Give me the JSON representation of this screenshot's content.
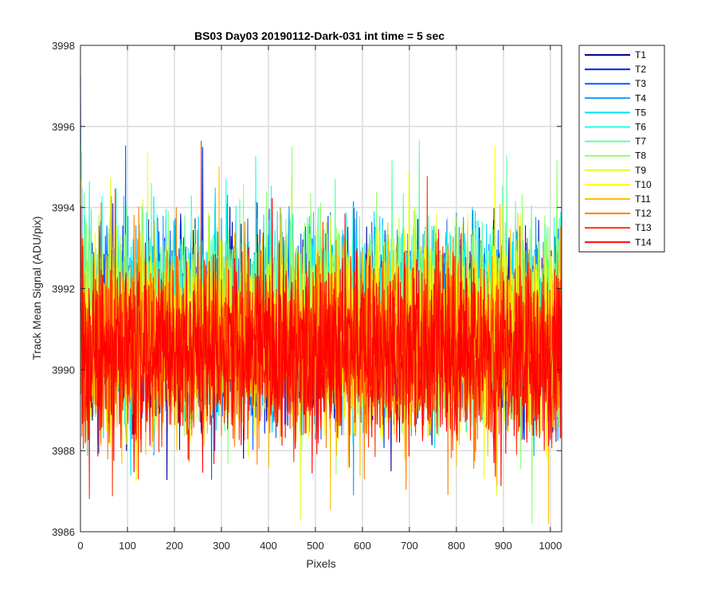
{
  "chart_data": {
    "type": "line",
    "title": "BS03 Day03 20190112-Dark-031 int time = 5 sec",
    "xlabel": "Pixels",
    "ylabel": "Track Mean Signal (ADU/pix)",
    "xlim": [
      0,
      1024
    ],
    "ylim": [
      3986,
      3998
    ],
    "xticks": [
      0,
      100,
      200,
      300,
      400,
      500,
      600,
      700,
      800,
      900,
      1000
    ],
    "yticks": [
      3986,
      3988,
      3990,
      3992,
      3994,
      3996,
      3998
    ],
    "grid": true,
    "legend_position": "outside-top-right",
    "noise_sd": 1.1,
    "series": [
      {
        "name": "T1",
        "color": "#00009f",
        "mean": 3991.0
      },
      {
        "name": "T2",
        "color": "#0020df",
        "mean": 3991.0
      },
      {
        "name": "T3",
        "color": "#0060ff",
        "mean": 3991.1
      },
      {
        "name": "T4",
        "color": "#009fff",
        "mean": 3991.3
      },
      {
        "name": "T5",
        "color": "#00dfff",
        "mean": 3991.4
      },
      {
        "name": "T6",
        "color": "#20ffdf",
        "mean": 3991.4
      },
      {
        "name": "T7",
        "color": "#60ffa0",
        "mean": 3991.3
      },
      {
        "name": "T8",
        "color": "#8fff70",
        "mean": 3991.1
      },
      {
        "name": "T9",
        "color": "#dfff20",
        "mean": 3991.0
      },
      {
        "name": "T10",
        "color": "#ffff00",
        "mean": 3990.8
      },
      {
        "name": "T11",
        "color": "#ffbf00",
        "mean": 3990.7
      },
      {
        "name": "T12",
        "color": "#ff8000",
        "mean": 3990.6
      },
      {
        "name": "T13",
        "color": "#ff3000",
        "mean": 3990.5
      },
      {
        "name": "T14",
        "color": "#ff0000",
        "mean": 3990.4
      }
    ]
  }
}
